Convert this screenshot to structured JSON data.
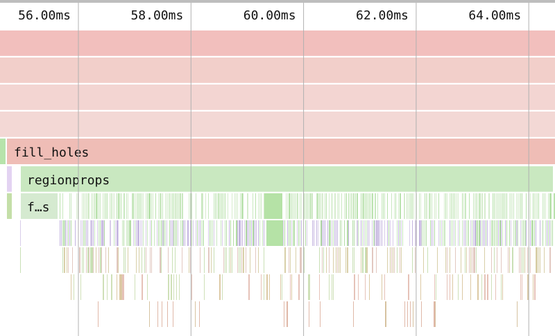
{
  "ruler": {
    "ticks": [
      "56.00ms",
      "58.00ms",
      "60.00ms",
      "62.00ms",
      "64.00ms"
    ]
  },
  "frames": {
    "fill_holes": "fill_holes",
    "regionprops": "regionprops",
    "short": "f…s"
  }
}
